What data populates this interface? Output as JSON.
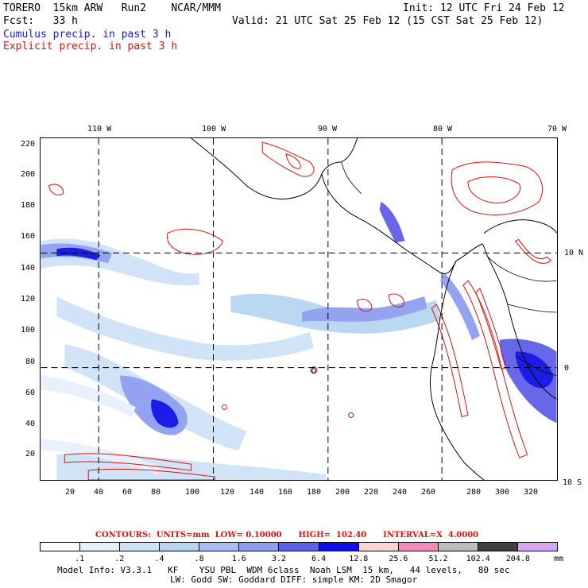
{
  "header": {
    "model": "TORERO  15km ARW   Run2    NCAR/MMM",
    "init": "Init: 12 UTC Fri 24 Feb 12",
    "fcst": "Fcst:   33 h",
    "valid": "Valid: 21 UTC Sat 25 Feb 12 (15 CST Sat 25 Feb 12)",
    "field1": "Cumulus precip. in past 3 h",
    "field2": "Explicit precip. in past 3 h"
  },
  "axes": {
    "top_lon": [
      "110 W",
      "100 W",
      "90 W",
      "80 W",
      "70 W"
    ],
    "right_lat": [
      "10 N",
      "0",
      "10 S"
    ],
    "left_y": [
      "220",
      "200",
      "180",
      "160",
      "140",
      "120",
      "100",
      "80",
      "60",
      "40",
      "20"
    ],
    "bottom_x": [
      "20",
      "40",
      "60",
      "80",
      "100",
      "120",
      "140",
      "160",
      "180",
      "200",
      "220",
      "240",
      "260",
      "280",
      "300",
      "320"
    ]
  },
  "contours_line": "CONTOURS:  UNITS=mm  LOW= 0.10000      HIGH=  102.40      INTERVAL=X  4.0000",
  "colorbar": {
    "labels": [
      ".1",
      ".2",
      ".4",
      ".8",
      "1.6",
      "3.2",
      "6.4",
      "12.8",
      "25.6",
      "51.2",
      "102.4",
      "204.8"
    ],
    "units": "mm",
    "colors": [
      "#ffffff",
      "#e6f0fb",
      "#cfe3f7",
      "#b8d6f2",
      "#a6bff0",
      "#8f9ff0",
      "#5f5fe8",
      "#1010e6",
      "#ffd4d4",
      "#f08cb8",
      "#bdbdbd",
      "#404040",
      "#d6a6f0"
    ]
  },
  "footer": {
    "line1": "Model Info: V3.3.1   KF    YSU PBL  WDM 6class  Noah LSM  15 km,   44 levels,   80 sec",
    "line2": "LW: Godd SW: Goddard DIFF: simple KM: 2D Smagor"
  }
}
